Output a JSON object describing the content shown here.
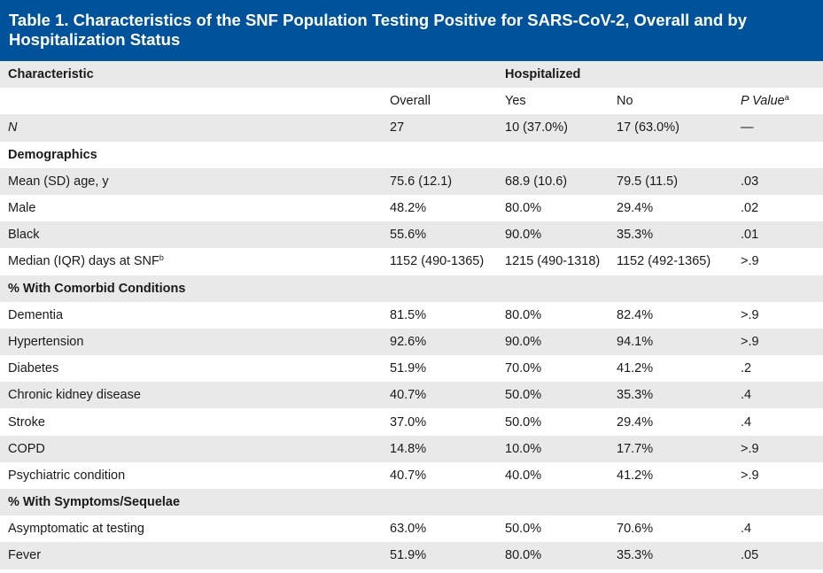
{
  "title": "Table 1. Characteristics of the SNF Population Testing Positive for SARS-CoV-2, Overall and by Hospitalization Status",
  "header": {
    "characteristic": "Characteristic",
    "hospitalized": "Hospitalized",
    "overall": "Overall",
    "yes": "Yes",
    "no": "No",
    "p_value": "P Value",
    "p_value_sup": "a"
  },
  "rows": [
    {
      "label": "N",
      "overall": "27",
      "yes": "10 (37.0%)",
      "no": "17 (63.0%)",
      "p": "—"
    },
    {
      "label": "Demographics"
    },
    {
      "label": "Mean (SD) age, y",
      "overall": "75.6 (12.1)",
      "yes": "68.9 (10.6)",
      "no": "79.5 (11.5)",
      "p": ".03"
    },
    {
      "label": "Male",
      "overall": "48.2%",
      "yes": "80.0%",
      "no": "29.4%",
      "p": ".02"
    },
    {
      "label": "Black",
      "overall": "55.6%",
      "yes": "90.0%",
      "no": "35.3%",
      "p": ".01"
    },
    {
      "label": "Median (IQR) days at SNF",
      "label_sup": "b",
      "overall": "1152 (490-1365)",
      "yes": "1215 (490-1318)",
      "no": "1152 (492-1365)",
      "p": ">.9"
    },
    {
      "label": "% With Comorbid Conditions"
    },
    {
      "label": "Dementia",
      "overall": "81.5%",
      "yes": "80.0%",
      "no": "82.4%",
      "p": ">.9"
    },
    {
      "label": "Hypertension",
      "overall": "92.6%",
      "yes": "90.0%",
      "no": "94.1%",
      "p": ">.9"
    },
    {
      "label": "Diabetes",
      "overall": "51.9%",
      "yes": "70.0%",
      "no": "41.2%",
      "p": ".2"
    },
    {
      "label": "Chronic kidney disease",
      "overall": "40.7%",
      "yes": "50.0%",
      "no": "35.3%",
      "p": ".4"
    },
    {
      "label": "Stroke",
      "overall": "37.0%",
      "yes": "50.0%",
      "no": "29.4%",
      "p": ".4"
    },
    {
      "label": "COPD",
      "overall": "14.8%",
      "yes": "10.0%",
      "no": "17.7%",
      "p": ">.9"
    },
    {
      "label": "Psychiatric condition",
      "overall": "40.7%",
      "yes": "40.0%",
      "no": "41.2%",
      "p": ">.9"
    },
    {
      "label": "% With Symptoms/Sequelae"
    },
    {
      "label": "Asymptomatic at testing",
      "overall": "63.0%",
      "yes": "50.0%",
      "no": "70.6%",
      "p": ".4"
    },
    {
      "label": "Fever",
      "overall": "51.9%",
      "yes": "80.0%",
      "no": "35.3%",
      "p": ".05"
    }
  ]
}
